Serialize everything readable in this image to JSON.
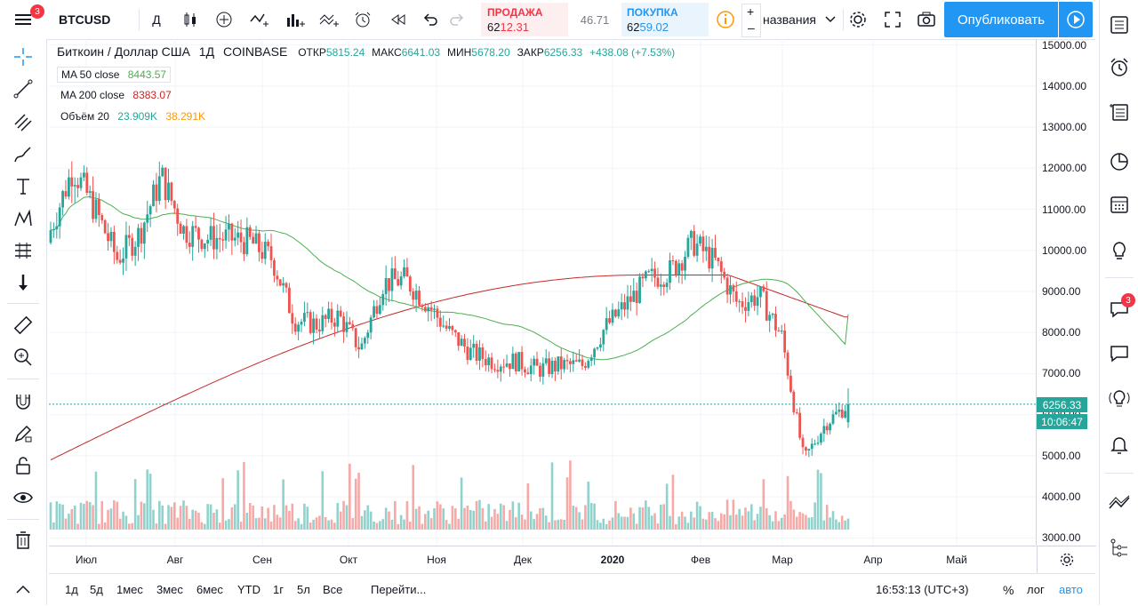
{
  "toolbar": {
    "symbol": "BTCUSD",
    "interval": "Д",
    "sell_label": "ПРОДАЖА",
    "sell_price_a": "62",
    "sell_price_b": "12.31",
    "spread": "46.71",
    "buy_label": "ПОКУПКА",
    "buy_price_a": "62",
    "buy_price_b": "59.02",
    "layout_name": "названия",
    "publish_label": "Опубликовать",
    "menu_badge": "3"
  },
  "legend": {
    "title": "Биткоин / Доллар США",
    "interval": "1Д",
    "exchange": "COINBASE",
    "open_label": "ОТКР",
    "open_value": "5815.24",
    "high_label": "МАКС",
    "high_value": "6641.03",
    "low_label": "МИН",
    "low_value": "5678.20",
    "close_label": "ЗАКР",
    "close_value": "6256.33",
    "change": "+438.08 (+7.53%)",
    "ma50_label": "MA 50 close",
    "ma50_value": "8443.57",
    "ma200_label": "MA 200 close",
    "ma200_value": "8383.07",
    "vol_label": "Объём 20",
    "vol_value_a": "23.909K",
    "vol_value_b": "38.291K"
  },
  "price_axis": [
    "15000.00",
    "14000.00",
    "13000.00",
    "12000.00",
    "11000.00",
    "10000.00",
    "9000.00",
    "8000.00",
    "7000.00",
    "6000.00",
    "5000.00",
    "4000.00",
    "3000.00"
  ],
  "price_label": "6256.33",
  "countdown_label": "10:06:47",
  "time_axis": [
    "Июл",
    "Авг",
    "Сен",
    "Окт",
    "Ноя",
    "Дек",
    "2020",
    "Фев",
    "Мар",
    "Апр",
    "Май"
  ],
  "bottom": {
    "ranges": [
      "1д",
      "5д",
      "1мес",
      "3мес",
      "6мес",
      "YTD",
      "1г",
      "5л",
      "Все"
    ],
    "goto": "Перейти...",
    "clock": "16:53:13 (UTC+3)",
    "percent": "%",
    "log": "лог",
    "auto": "авто"
  },
  "right_badge": "3",
  "colors": {
    "up": "#26a69a",
    "down": "#ef5350",
    "ma50": "#4caf50",
    "ma200": "#c62828",
    "accent": "#2196f3"
  },
  "chart_data": {
    "type": "candlestick",
    "title": "Биткоин / Доллар США",
    "ylim": [
      2900,
      15100
    ],
    "x_labels": [
      "Июл",
      "Авг",
      "Сен",
      "Окт",
      "Ноя",
      "Дек",
      "2020",
      "Фев",
      "Мар",
      "Апр",
      "Май"
    ],
    "close_path": [
      [
        "Июл",
        10500
      ],
      [
        "Июл",
        12000
      ],
      [
        "Июл",
        11000
      ],
      [
        "Июл",
        9800
      ],
      [
        "Авг",
        10400
      ],
      [
        "Авг",
        11800
      ],
      [
        "Авг",
        10500
      ],
      [
        "Авг",
        10300
      ],
      [
        "Сен",
        10300
      ],
      [
        "Сен",
        10200
      ],
      [
        "Сен",
        9800
      ],
      [
        "Сен",
        8300
      ],
      [
        "Окт",
        8200
      ],
      [
        "Окт",
        8400
      ],
      [
        "Окт",
        7600
      ],
      [
        "Окт",
        9200
      ],
      [
        "Ноя",
        9300
      ],
      [
        "Ноя",
        8700
      ],
      [
        "Ноя",
        8000
      ],
      [
        "Ноя",
        7500
      ],
      [
        "Дек",
        7300
      ],
      [
        "Дек",
        7300
      ],
      [
        "Дек",
        7100
      ],
      [
        "Дек",
        7200
      ],
      [
        "2020",
        7200
      ],
      [
        "2020",
        8100
      ],
      [
        "2020",
        8700
      ],
      [
        "2020",
        9300
      ],
      [
        "Фев",
        9500
      ],
      [
        "Фев",
        10200
      ],
      [
        "Фев",
        9700
      ],
      [
        "Фев",
        8700
      ],
      [
        "Мар",
        8900
      ],
      [
        "Мар",
        7900
      ],
      [
        "Мар",
        4900
      ],
      [
        "Мар",
        5800
      ],
      [
        "Мар",
        6256.33
      ]
    ],
    "series": [
      {
        "name": "MA 50 close",
        "last": 8443.57
      },
      {
        "name": "MA 200 close",
        "last": 8383.07
      }
    ],
    "last_price": 6256.33
  }
}
